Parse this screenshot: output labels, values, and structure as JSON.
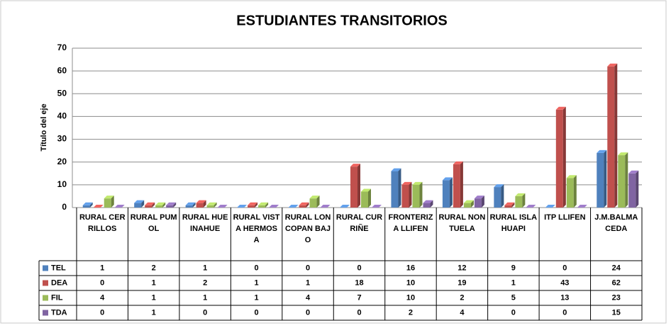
{
  "chart_data": {
    "type": "bar",
    "title": "ESTUDIANTES TRANSITORIOS",
    "y_label": "Título del eje",
    "categories": [
      "RURAL CERRILLOS",
      "RURAL PUMOL",
      "RURAL HUEINAHUE",
      "RURAL VISTA HERMOSA",
      "RURAL LONCOPAN BAJO",
      "RURAL CURRIÑE",
      "FRONTERIZA LLIFEN",
      "RURAL NONTUELA",
      "RURAL ISLA HUAPI",
      "ITP LLIFEN",
      "J.M.BALMACEDA"
    ],
    "series": [
      {
        "name": "TEL",
        "color": "#4f81bd",
        "values": [
          1,
          2,
          1,
          0,
          0,
          0,
          16,
          12,
          9,
          0,
          24
        ]
      },
      {
        "name": "DEA",
        "color": "#c0504d",
        "values": [
          0,
          1,
          2,
          1,
          1,
          18,
          10,
          19,
          1,
          43,
          62
        ]
      },
      {
        "name": "FIL",
        "color": "#9bbb59",
        "values": [
          4,
          1,
          1,
          1,
          4,
          7,
          10,
          2,
          5,
          13,
          23
        ]
      },
      {
        "name": "TDA",
        "color": "#8064a2",
        "values": [
          0,
          1,
          0,
          0,
          0,
          0,
          2,
          4,
          0,
          0,
          15
        ]
      }
    ],
    "ylim": [
      0,
      70
    ],
    "yticks": [
      0,
      10,
      20,
      30,
      40,
      50,
      60,
      70
    ],
    "grid": true,
    "data_table": true
  }
}
